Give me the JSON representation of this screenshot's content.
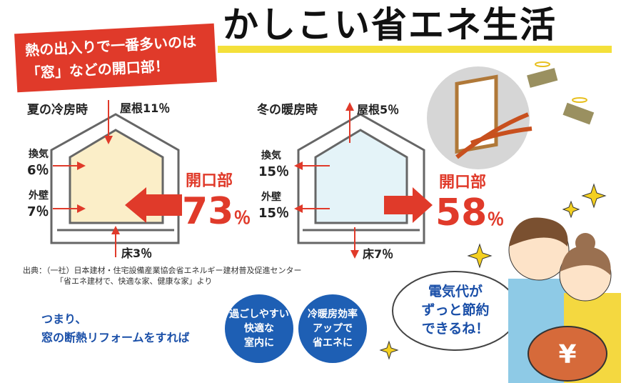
{
  "banner": {
    "line1": "熱の出入りで一番多いのは",
    "line2": "「窓」などの開口部！"
  },
  "title": "かしこい省エネ生活",
  "summer": {
    "heading": "夏の冷房時",
    "roof": "屋根11％",
    "vent_label": "換気",
    "vent": "6％",
    "wall_label": "外壁",
    "wall": "7％",
    "floor": "床3％",
    "opening_label": "開口部",
    "opening_value": "73",
    "percent": "％",
    "fill": "#fbeec8"
  },
  "winter": {
    "heading": "冬の暖房時",
    "roof": "屋根5％",
    "vent_label": "換気",
    "vent": "15％",
    "wall_label": "外壁",
    "wall": "15％",
    "floor": "床7％",
    "opening_label": "開口部",
    "opening_value": "58",
    "percent": "％",
    "fill": "#e4f3f8"
  },
  "source": {
    "line1": "出典：（一社）日本建材・住宅設備産業協会省エネルギー建材普及促進センター",
    "line2": "「省エネ建材で、快適な家、健康な家」より"
  },
  "conclusion": {
    "line1": "つまり、",
    "line2": "窓の断熱リフォームをすれば"
  },
  "circles": [
    {
      "text": "過ごしやすい\n快適な\n室内に"
    },
    {
      "text": "冷暖房効率\nアップで\n省エネに"
    }
  ],
  "bubble": {
    "line1": "電気代が",
    "line2": "ずっと節約",
    "line3": "できるね！"
  },
  "colors": {
    "red": "#e03a2a",
    "blue": "#1e5fb4",
    "yellow": "#f4e03a"
  },
  "icons": [
    "window-icon",
    "flying-money-icon",
    "sparkle-icon",
    "yen-purse-icon"
  ]
}
